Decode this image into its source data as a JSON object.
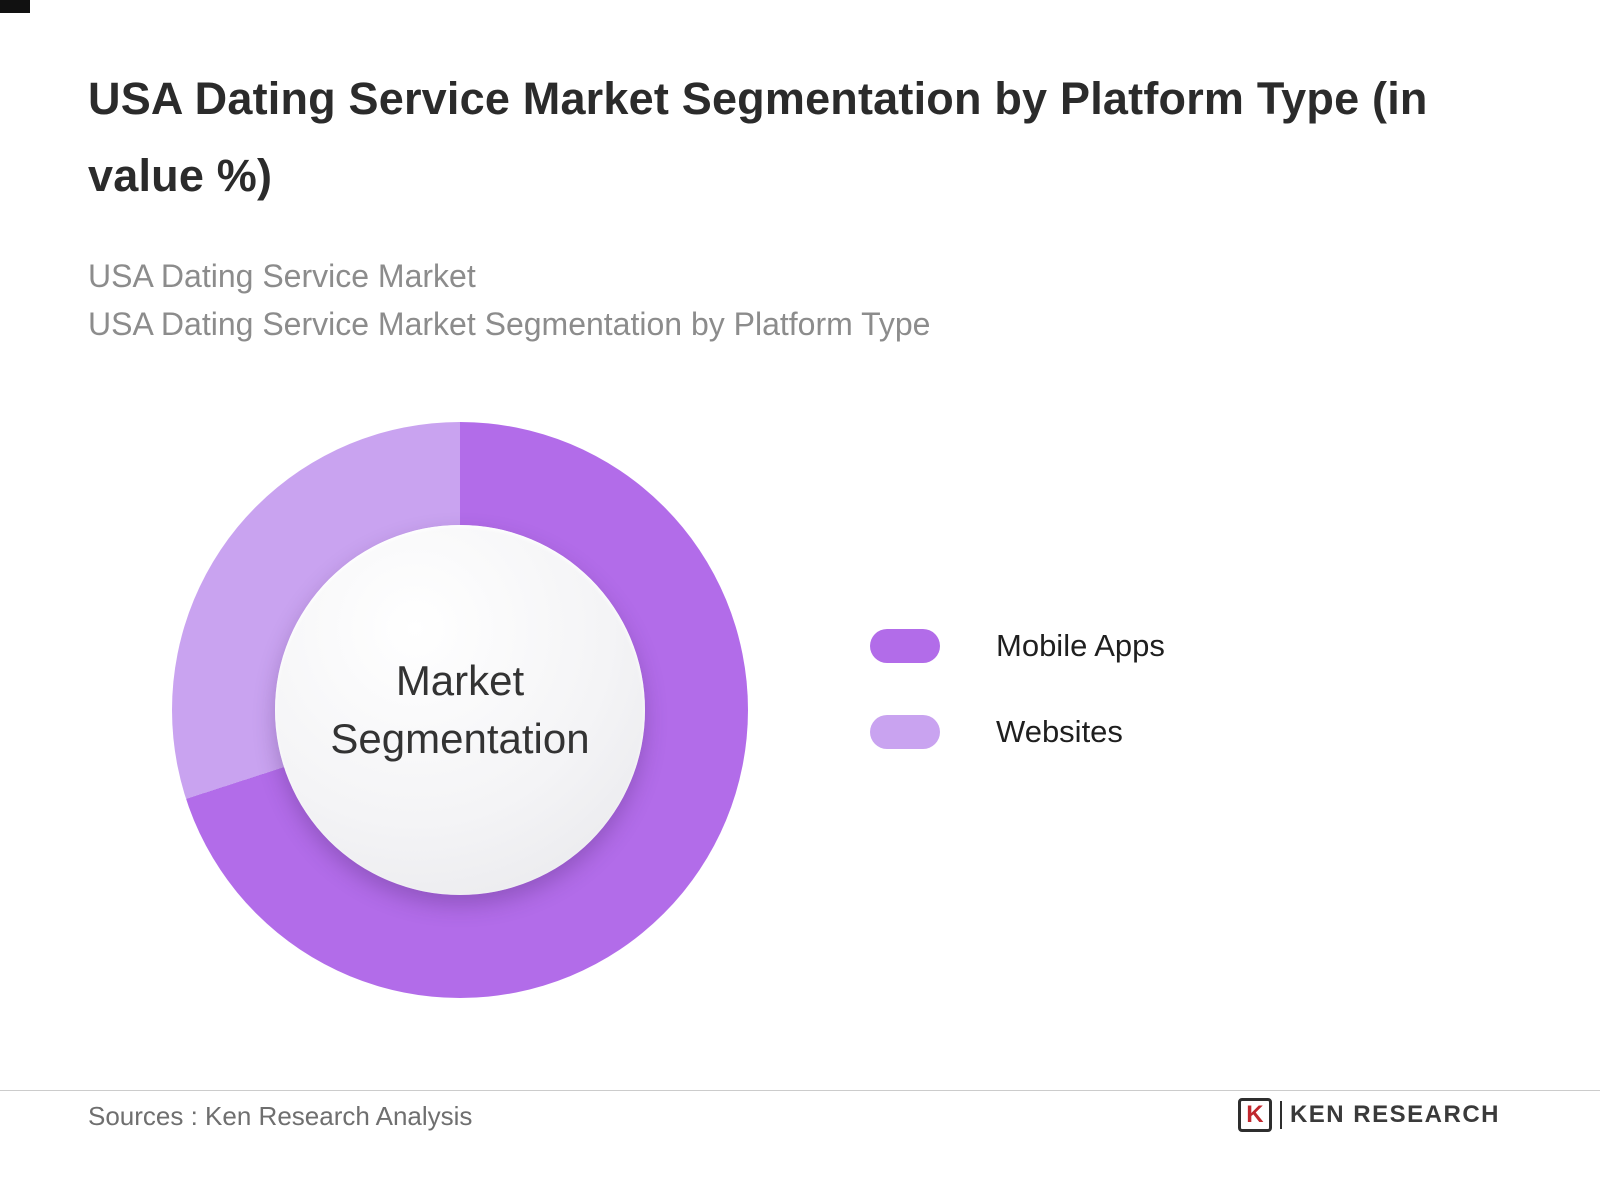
{
  "header": {
    "title": "USA Dating Service Market Segmentation by Platform Type (in value %)",
    "subtitle_line1": "USA Dating Service Market",
    "subtitle_line2": "USA Dating Service Market Segmentation by Platform Type"
  },
  "chart_data": {
    "type": "pie",
    "variant": "donut",
    "title": "USA Dating Service Market Segmentation by Platform Type (in value %)",
    "center_label": "Market Segmentation",
    "categories": [
      "Mobile Apps",
      "Websites"
    ],
    "values": [
      70,
      30
    ],
    "unit": "value %",
    "colors": [
      "#b26ce9",
      "#c9a3f0"
    ],
    "legend_position": "right",
    "start_angle_deg": 0,
    "direction": "clockwise"
  },
  "legend": {
    "items": [
      {
        "label": "Mobile Apps",
        "color": "#b26ce9"
      },
      {
        "label": "Websites",
        "color": "#c9a3f0"
      }
    ]
  },
  "footer": {
    "sources": "Sources : Ken Research Analysis",
    "logo_k": "K",
    "logo_text": "KEN RESEARCH"
  }
}
